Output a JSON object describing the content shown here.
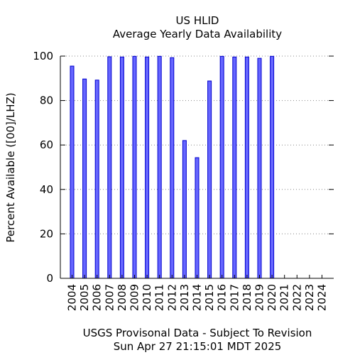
{
  "chart_data": {
    "type": "bar",
    "title_line1": "US HLID",
    "title_line2": "Average Yearly Data Availability",
    "ylabel": "Percent Available ([00]/LHZ)",
    "footer_line1": "USGS Provisonal Data - Subject To Revision",
    "footer_line2": "Sun Apr 27 21:15:01 MDT 2025",
    "categories": [
      "2004",
      "2005",
      "2006",
      "2007",
      "2008",
      "2009",
      "2010",
      "2011",
      "2012",
      "2013",
      "2014",
      "2015",
      "2016",
      "2017",
      "2018",
      "2019",
      "2020",
      "2021",
      "2022",
      "2023",
      "2024"
    ],
    "values": [
      95.5,
      89.7,
      89.2,
      99.7,
      99.6,
      99.9,
      99.6,
      99.9,
      99.3,
      62.0,
      54.3,
      88.8,
      99.9,
      99.6,
      99.6,
      99.0,
      99.9,
      null,
      null,
      null,
      null
    ],
    "ylim": [
      0,
      100
    ],
    "yticks": [
      0,
      20,
      40,
      60,
      80,
      100
    ],
    "grid": true,
    "legend": "none",
    "colors": {
      "bar_fill": "#6666ff",
      "bar_stroke": "#0000cc",
      "grid": "#888888",
      "axis": "#000000"
    }
  }
}
